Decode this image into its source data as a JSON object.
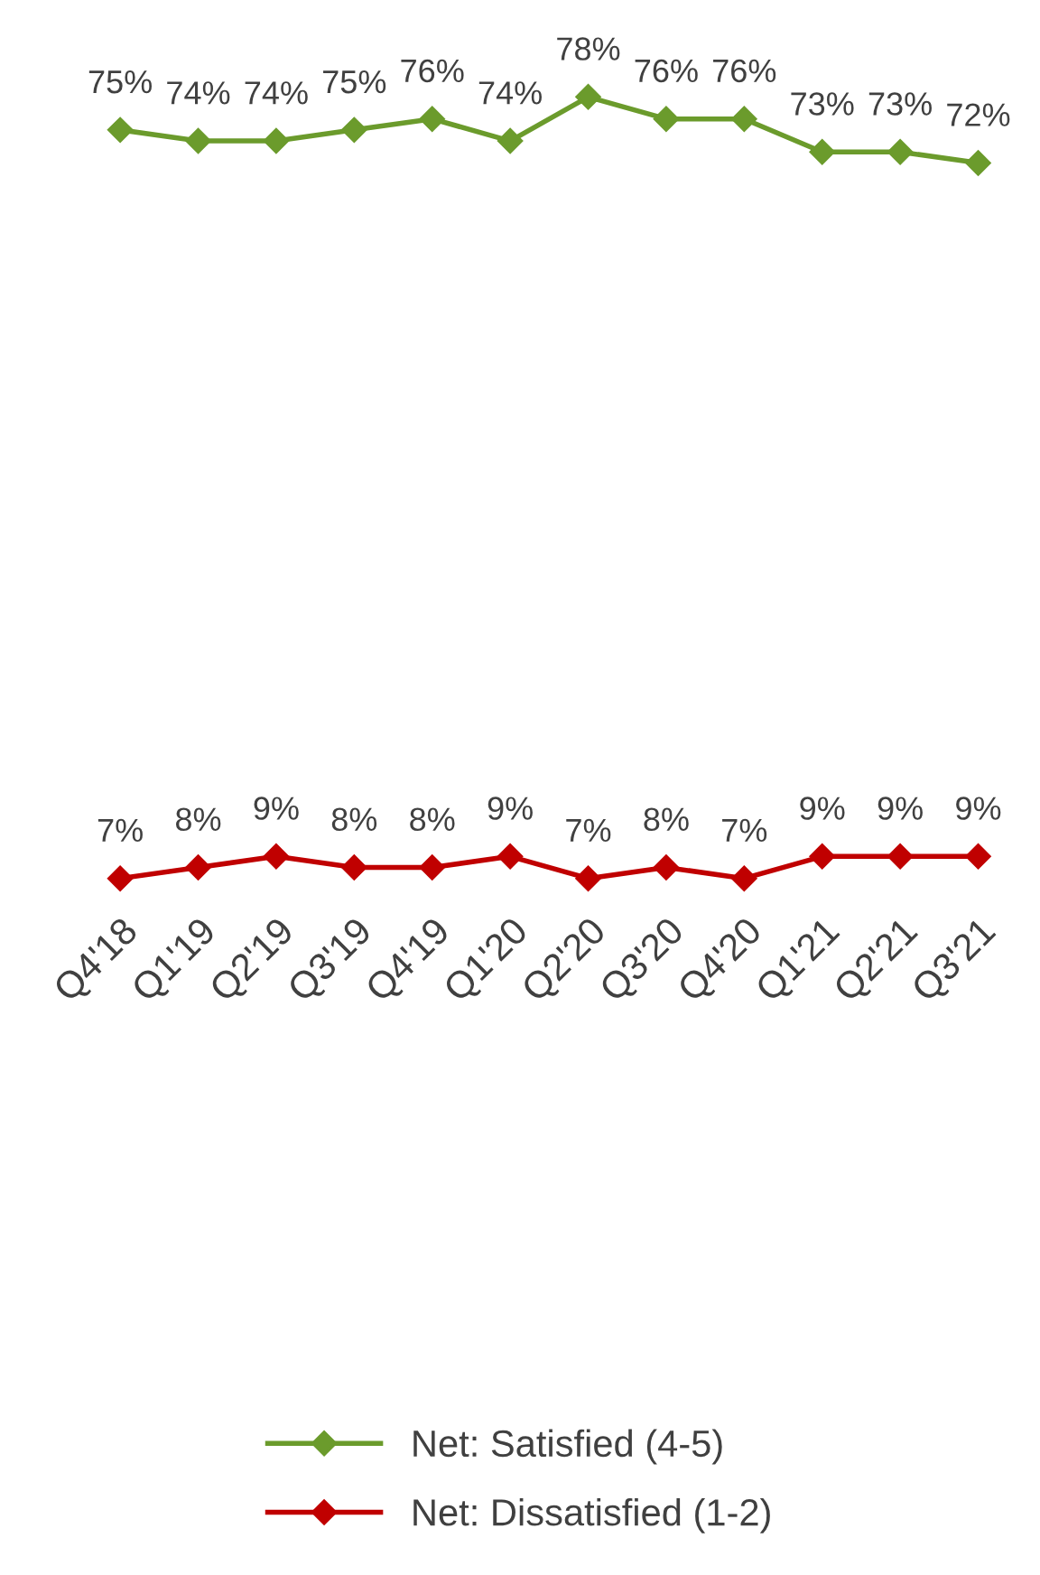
{
  "chart_data": {
    "type": "line",
    "categories": [
      "Q4'18",
      "Q1'19",
      "Q2'19",
      "Q3'19",
      "Q4'19",
      "Q1'20",
      "Q2'20",
      "Q3'20",
      "Q4'20",
      "Q1'21",
      "Q2'21",
      "Q3'21"
    ],
    "series": [
      {
        "name": "Net: Satisfied (4-5)",
        "color": "#6b9b2c",
        "values": [
          75,
          74,
          74,
          75,
          76,
          74,
          78,
          76,
          76,
          73,
          73,
          72
        ],
        "value_labels": [
          "75%",
          "74%",
          "74%",
          "75%",
          "76%",
          "74%",
          "78%",
          "76%",
          "76%",
          "73%",
          "73%",
          "72%"
        ]
      },
      {
        "name": "Net: Dissatisfied (1-2)",
        "color": "#c00000",
        "values": [
          7,
          8,
          9,
          8,
          8,
          9,
          7,
          8,
          7,
          9,
          9,
          9
        ],
        "value_labels": [
          "7%",
          "8%",
          "9%",
          "8%",
          "8%",
          "9%",
          "7%",
          "8%",
          "7%",
          "9%",
          "9%",
          "9%"
        ]
      }
    ],
    "marker": "diamond",
    "line_style": "solid",
    "legend": "bottom",
    "grid": false,
    "tick_labels": "x"
  }
}
